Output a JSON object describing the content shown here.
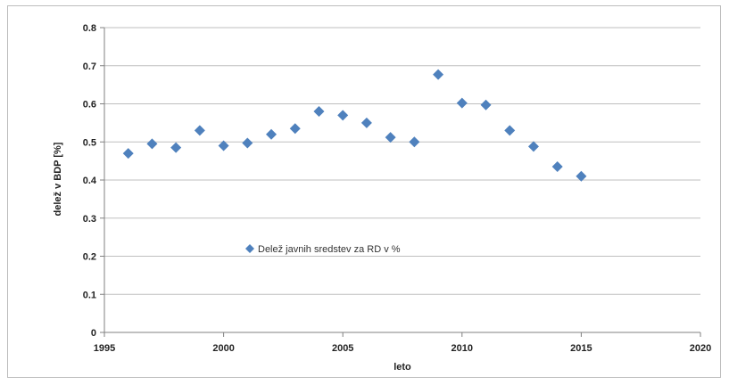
{
  "chart_data": {
    "type": "scatter",
    "title": "",
    "xlabel": "leto",
    "ylabel": "delež v BDP [%]",
    "xlim": [
      1995,
      2020
    ],
    "ylim": [
      0,
      0.8
    ],
    "x_ticks": [
      "1995",
      "2000",
      "2005",
      "2010",
      "2015",
      "2020"
    ],
    "y_ticks": [
      "0",
      "0.1",
      "0.2",
      "0.3",
      "0.4",
      "0.5",
      "0.6",
      "0.7",
      "0.8"
    ],
    "grid": "horizontal",
    "legend_position": "center-left",
    "series": [
      {
        "name": "Delež javnih sredstev za RD v %",
        "color": "#4f81bd",
        "marker": "diamond",
        "x": [
          1996,
          1997,
          1998,
          1999,
          2000,
          2001,
          2002,
          2003,
          2004,
          2005,
          2006,
          2007,
          2008,
          2009,
          2010,
          2011,
          2012,
          2013,
          2014,
          2015
        ],
        "y": [
          0.47,
          0.495,
          0.485,
          0.53,
          0.49,
          0.497,
          0.52,
          0.535,
          0.58,
          0.57,
          0.55,
          0.512,
          0.5,
          0.677,
          0.602,
          0.597,
          0.53,
          0.488,
          0.435,
          0.41
        ]
      }
    ]
  }
}
